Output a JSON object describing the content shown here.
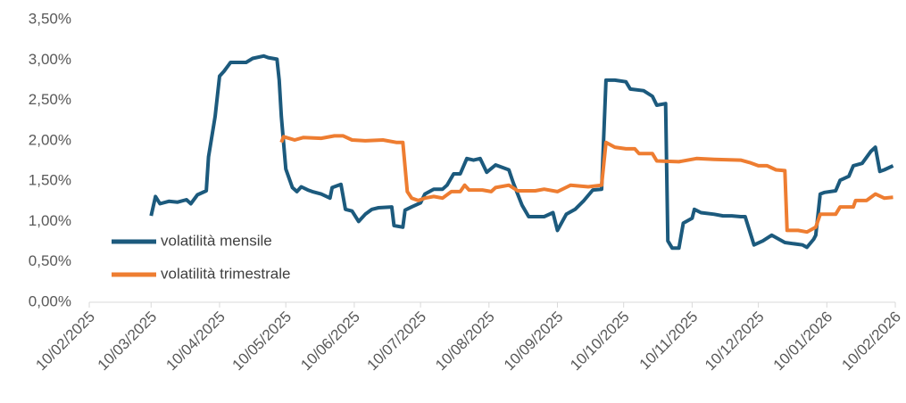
{
  "chart_data": {
    "type": "line",
    "xlim": [
      "10/02/2025",
      "10/02/2026"
    ],
    "xticks": [
      "10/02/2025",
      "10/03/2025",
      "10/04/2025",
      "10/05/2025",
      "10/06/2025",
      "10/07/2025",
      "10/08/2025",
      "10/09/2025",
      "10/10/2025",
      "10/11/2025",
      "10/12/2025",
      "10/01/2026",
      "10/02/2026"
    ],
    "ylim": [
      0,
      3.5
    ],
    "yticks": [
      {
        "value": 0,
        "label": "0,00%"
      },
      {
        "value": 0.5,
        "label": "0,50%"
      },
      {
        "value": 1,
        "label": "1,00%"
      },
      {
        "value": 1.5,
        "label": "1,50%"
      },
      {
        "value": 2,
        "label": "2,00%"
      },
      {
        "value": 2.5,
        "label": "2,50%"
      },
      {
        "value": 3,
        "label": "3,00%"
      },
      {
        "value": 3.5,
        "label": "3,50%"
      }
    ],
    "grid": false,
    "legend": "bottom-left",
    "series": [
      {
        "name": "volatilità mensile",
        "color": "#1c5a7d",
        "x": [
          "10/03/2025",
          "12/03/2025",
          "14/03/2025",
          "18/03/2025",
          "22/03/2025",
          "26/03/2025",
          "28/03/2025",
          "31/03/2025",
          "04/04/2025",
          "05/04/2025",
          "08/04/2025",
          "10/04/2025",
          "12/04/2025",
          "15/04/2025",
          "22/04/2025",
          "25/04/2025",
          "30/04/2025",
          "02/05/2025",
          "06/05/2025",
          "07/05/2025",
          "08/05/2025",
          "10/05/2025",
          "13/05/2025",
          "15/05/2025",
          "17/05/2025",
          "20/05/2025",
          "22/05/2025",
          "26/05/2025",
          "30/05/2025",
          "31/05/2025",
          "04/06/2025",
          "06/06/2025",
          "09/06/2025",
          "12/06/2025",
          "15/06/2025",
          "18/06/2025",
          "21/06/2025",
          "27/06/2025",
          "28/06/2025",
          "02/07/2025",
          "03/07/2025",
          "06/07/2025",
          "10/07/2025",
          "12/07/2025",
          "16/07/2025",
          "20/07/2025",
          "22/07/2025",
          "25/07/2025",
          "28/07/2025",
          "31/07/2025",
          "03/08/2025",
          "06/08/2025",
          "09/08/2025",
          "13/08/2025",
          "19/08/2025",
          "21/08/2025",
          "25/08/2025",
          "28/08/2025",
          "04/09/2025",
          "08/09/2025",
          "10/09/2025",
          "14/09/2025",
          "18/09/2025",
          "22/09/2025",
          "26/09/2025",
          "30/09/2025",
          "02/10/2025",
          "06/10/2025",
          "11/10/2025",
          "13/10/2025",
          "19/10/2025",
          "23/10/2025",
          "25/10/2025",
          "29/10/2025",
          "30/10/2025",
          "01/11/2025",
          "04/11/2025",
          "06/11/2025",
          "10/11/2025",
          "11/11/2025",
          "14/11/2025",
          "20/11/2025",
          "24/11/2025",
          "26/11/2025",
          "28/11/2025",
          "02/12/2025",
          "04/12/2025",
          "08/12/2025",
          "12/12/2025",
          "16/12/2025",
          "22/12/2025",
          "30/12/2025",
          "01/01/2026",
          "04/01/2026",
          "05/01/2026",
          "07/01/2026",
          "09/01/2026",
          "14/01/2026",
          "16/01/2026",
          "20/01/2026",
          "22/01/2026",
          "26/01/2026",
          "30/01/2026",
          "01/02/2026",
          "03/02/2026",
          "05/02/2026",
          "09/02/2026"
        ],
        "values": [
          1.07,
          1.31,
          1.22,
          1.25,
          1.24,
          1.27,
          1.22,
          1.33,
          1.38,
          1.8,
          2.3,
          2.8,
          2.86,
          2.97,
          2.97,
          3.02,
          3.05,
          3.03,
          3.01,
          2.75,
          2.3,
          1.65,
          1.42,
          1.37,
          1.43,
          1.39,
          1.37,
          1.34,
          1.29,
          1.42,
          1.46,
          1.15,
          1.13,
          1.0,
          1.09,
          1.15,
          1.17,
          1.18,
          0.95,
          0.93,
          1.14,
          1.18,
          1.23,
          1.34,
          1.4,
          1.4,
          1.45,
          1.59,
          1.59,
          1.78,
          1.76,
          1.78,
          1.61,
          1.7,
          1.64,
          1.48,
          1.2,
          1.06,
          1.06,
          1.11,
          0.89,
          1.09,
          1.15,
          1.26,
          1.39,
          1.4,
          2.75,
          2.75,
          2.73,
          2.64,
          2.62,
          2.55,
          2.44,
          2.46,
          0.76,
          0.67,
          0.67,
          0.98,
          1.04,
          1.15,
          1.11,
          1.09,
          1.07,
          1.07,
          1.07,
          1.06,
          1.06,
          0.71,
          0.76,
          0.83,
          0.74,
          0.71,
          0.68,
          0.78,
          0.83,
          1.34,
          1.36,
          1.38,
          1.51,
          1.56,
          1.69,
          1.72,
          1.87,
          1.92,
          1.62,
          1.64,
          1.69
        ]
      },
      {
        "name": "volatilità trimestrale",
        "color": "#ee7d31",
        "x": [
          "08/05/2025",
          "09/05/2025",
          "14/05/2025",
          "18/05/2025",
          "26/05/2025",
          "01/06/2025",
          "05/06/2025",
          "09/06/2025",
          "15/06/2025",
          "23/06/2025",
          "29/06/2025",
          "02/07/2025",
          "04/07/2025",
          "06/07/2025",
          "09/07/2025",
          "12/07/2025",
          "16/07/2025",
          "20/07/2025",
          "24/07/2025",
          "28/07/2025",
          "30/07/2025",
          "01/08/2025",
          "07/08/2025",
          "11/08/2025",
          "13/08/2025",
          "19/08/2025",
          "23/08/2025",
          "31/08/2025",
          "04/09/2025",
          "10/09/2025",
          "16/09/2025",
          "24/09/2025",
          "30/09/2025",
          "02/10/2025",
          "06/10/2025",
          "11/10/2025",
          "15/10/2025",
          "17/10/2025",
          "23/10/2025",
          "25/10/2025",
          "04/11/2025",
          "12/11/2025",
          "20/11/2025",
          "02/12/2025",
          "06/12/2025",
          "10/12/2025",
          "14/12/2025",
          "18/12/2025",
          "22/12/2025",
          "23/12/2025",
          "28/12/2025",
          "01/01/2026",
          "05/01/2026",
          "07/01/2026",
          "14/01/2026",
          "16/01/2026",
          "22/01/2026",
          "23/01/2026",
          "28/01/2026",
          "01/02/2026",
          "05/02/2026",
          "09/02/2026"
        ],
        "values": [
          1.98,
          2.05,
          2.01,
          2.04,
          2.03,
          2.06,
          2.06,
          2.01,
          2.0,
          2.01,
          1.98,
          1.98,
          1.37,
          1.29,
          1.26,
          1.29,
          1.31,
          1.29,
          1.37,
          1.37,
          1.45,
          1.39,
          1.39,
          1.37,
          1.42,
          1.45,
          1.38,
          1.38,
          1.4,
          1.37,
          1.45,
          1.43,
          1.45,
          1.98,
          1.92,
          1.9,
          1.9,
          1.84,
          1.84,
          1.75,
          1.74,
          1.78,
          1.77,
          1.76,
          1.73,
          1.69,
          1.69,
          1.64,
          1.63,
          0.89,
          0.89,
          0.87,
          0.93,
          1.09,
          1.09,
          1.18,
          1.18,
          1.26,
          1.26,
          1.34,
          1.29,
          1.3
        ]
      }
    ]
  }
}
